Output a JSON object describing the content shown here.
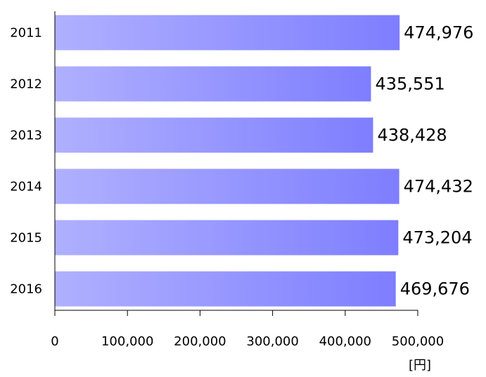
{
  "chart_data": {
    "type": "bar",
    "orientation": "horizontal",
    "categories": [
      "2011",
      "2012",
      "2013",
      "2014",
      "2015",
      "2016"
    ],
    "values": [
      474976,
      435551,
      438428,
      474432,
      473204,
      469676
    ],
    "data_labels": [
      "474,976",
      "435,551",
      "438,428",
      "474,432",
      "473,204",
      "469,676"
    ],
    "xlim": [
      0,
      500000
    ],
    "xticks": [
      0,
      100000,
      200000,
      300000,
      400000,
      500000
    ],
    "xtick_labels": [
      "0",
      "100,000",
      "200,000",
      "300,000",
      "400,000",
      "500,000"
    ],
    "unit": "[円]",
    "title": "",
    "xlabel": "",
    "ylabel": "",
    "grid": false,
    "legend": "none"
  },
  "colors": {
    "bar_gradient_start": "#b0b0ff",
    "bar_gradient_end": "#7e7eff",
    "axis": "#000000"
  }
}
